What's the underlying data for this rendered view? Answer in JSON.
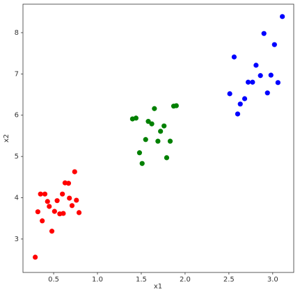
{
  "chart_data": {
    "type": "scatter",
    "xlabel": "x1",
    "ylabel": "x2",
    "xlim": [
      0.15,
      3.24
    ],
    "ylim": [
      2.19,
      8.69
    ],
    "xticks": [
      {
        "value": 0.5,
        "label": "0.5"
      },
      {
        "value": 1,
        "label": "1.0"
      },
      {
        "value": 1.5,
        "label": "1.5"
      },
      {
        "value": 2,
        "label": "2.0"
      },
      {
        "value": 2.5,
        "label": "2.5"
      },
      {
        "value": 3,
        "label": "3.0"
      }
    ],
    "yticks": [
      3,
      4,
      5,
      6,
      7,
      8
    ],
    "series": [
      {
        "color": "#ff0000",
        "x": [
          0.29,
          0.32,
          0.35,
          0.4,
          0.37,
          0.43,
          0.45,
          0.48,
          0.51,
          0.54,
          0.57,
          0.6,
          0.61,
          0.63,
          0.67,
          0.68,
          0.71,
          0.74,
          0.76,
          0.79
        ],
        "y": [
          2.56,
          3.66,
          4.09,
          4.09,
          3.44,
          3.91,
          3.79,
          3.19,
          3.67,
          3.93,
          3.61,
          4.09,
          3.62,
          4.36,
          4.35,
          3.99,
          3.81,
          4.63,
          3.94,
          3.64
        ]
      },
      {
        "color": "#008000",
        "x": [
          1.4,
          1.44,
          1.48,
          1.51,
          1.55,
          1.58,
          1.62,
          1.65,
          1.69,
          1.72,
          1.76,
          1.79,
          1.83,
          1.87,
          1.9
        ],
        "y": [
          5.91,
          5.93,
          5.09,
          4.83,
          5.41,
          5.85,
          5.79,
          6.16,
          5.37,
          5.61,
          5.74,
          4.97,
          5.37,
          6.22,
          6.23
        ]
      },
      {
        "color": "#0000ff",
        "x": [
          2.51,
          2.56,
          2.6,
          2.63,
          2.68,
          2.72,
          2.77,
          2.81,
          2.86,
          2.9,
          2.94,
          2.98,
          3.02,
          3.06,
          3.11
        ],
        "y": [
          6.52,
          7.41,
          6.03,
          6.27,
          6.4,
          6.8,
          6.8,
          7.21,
          6.96,
          7.98,
          6.54,
          6.97,
          7.71,
          6.79,
          8.39
        ]
      }
    ]
  }
}
